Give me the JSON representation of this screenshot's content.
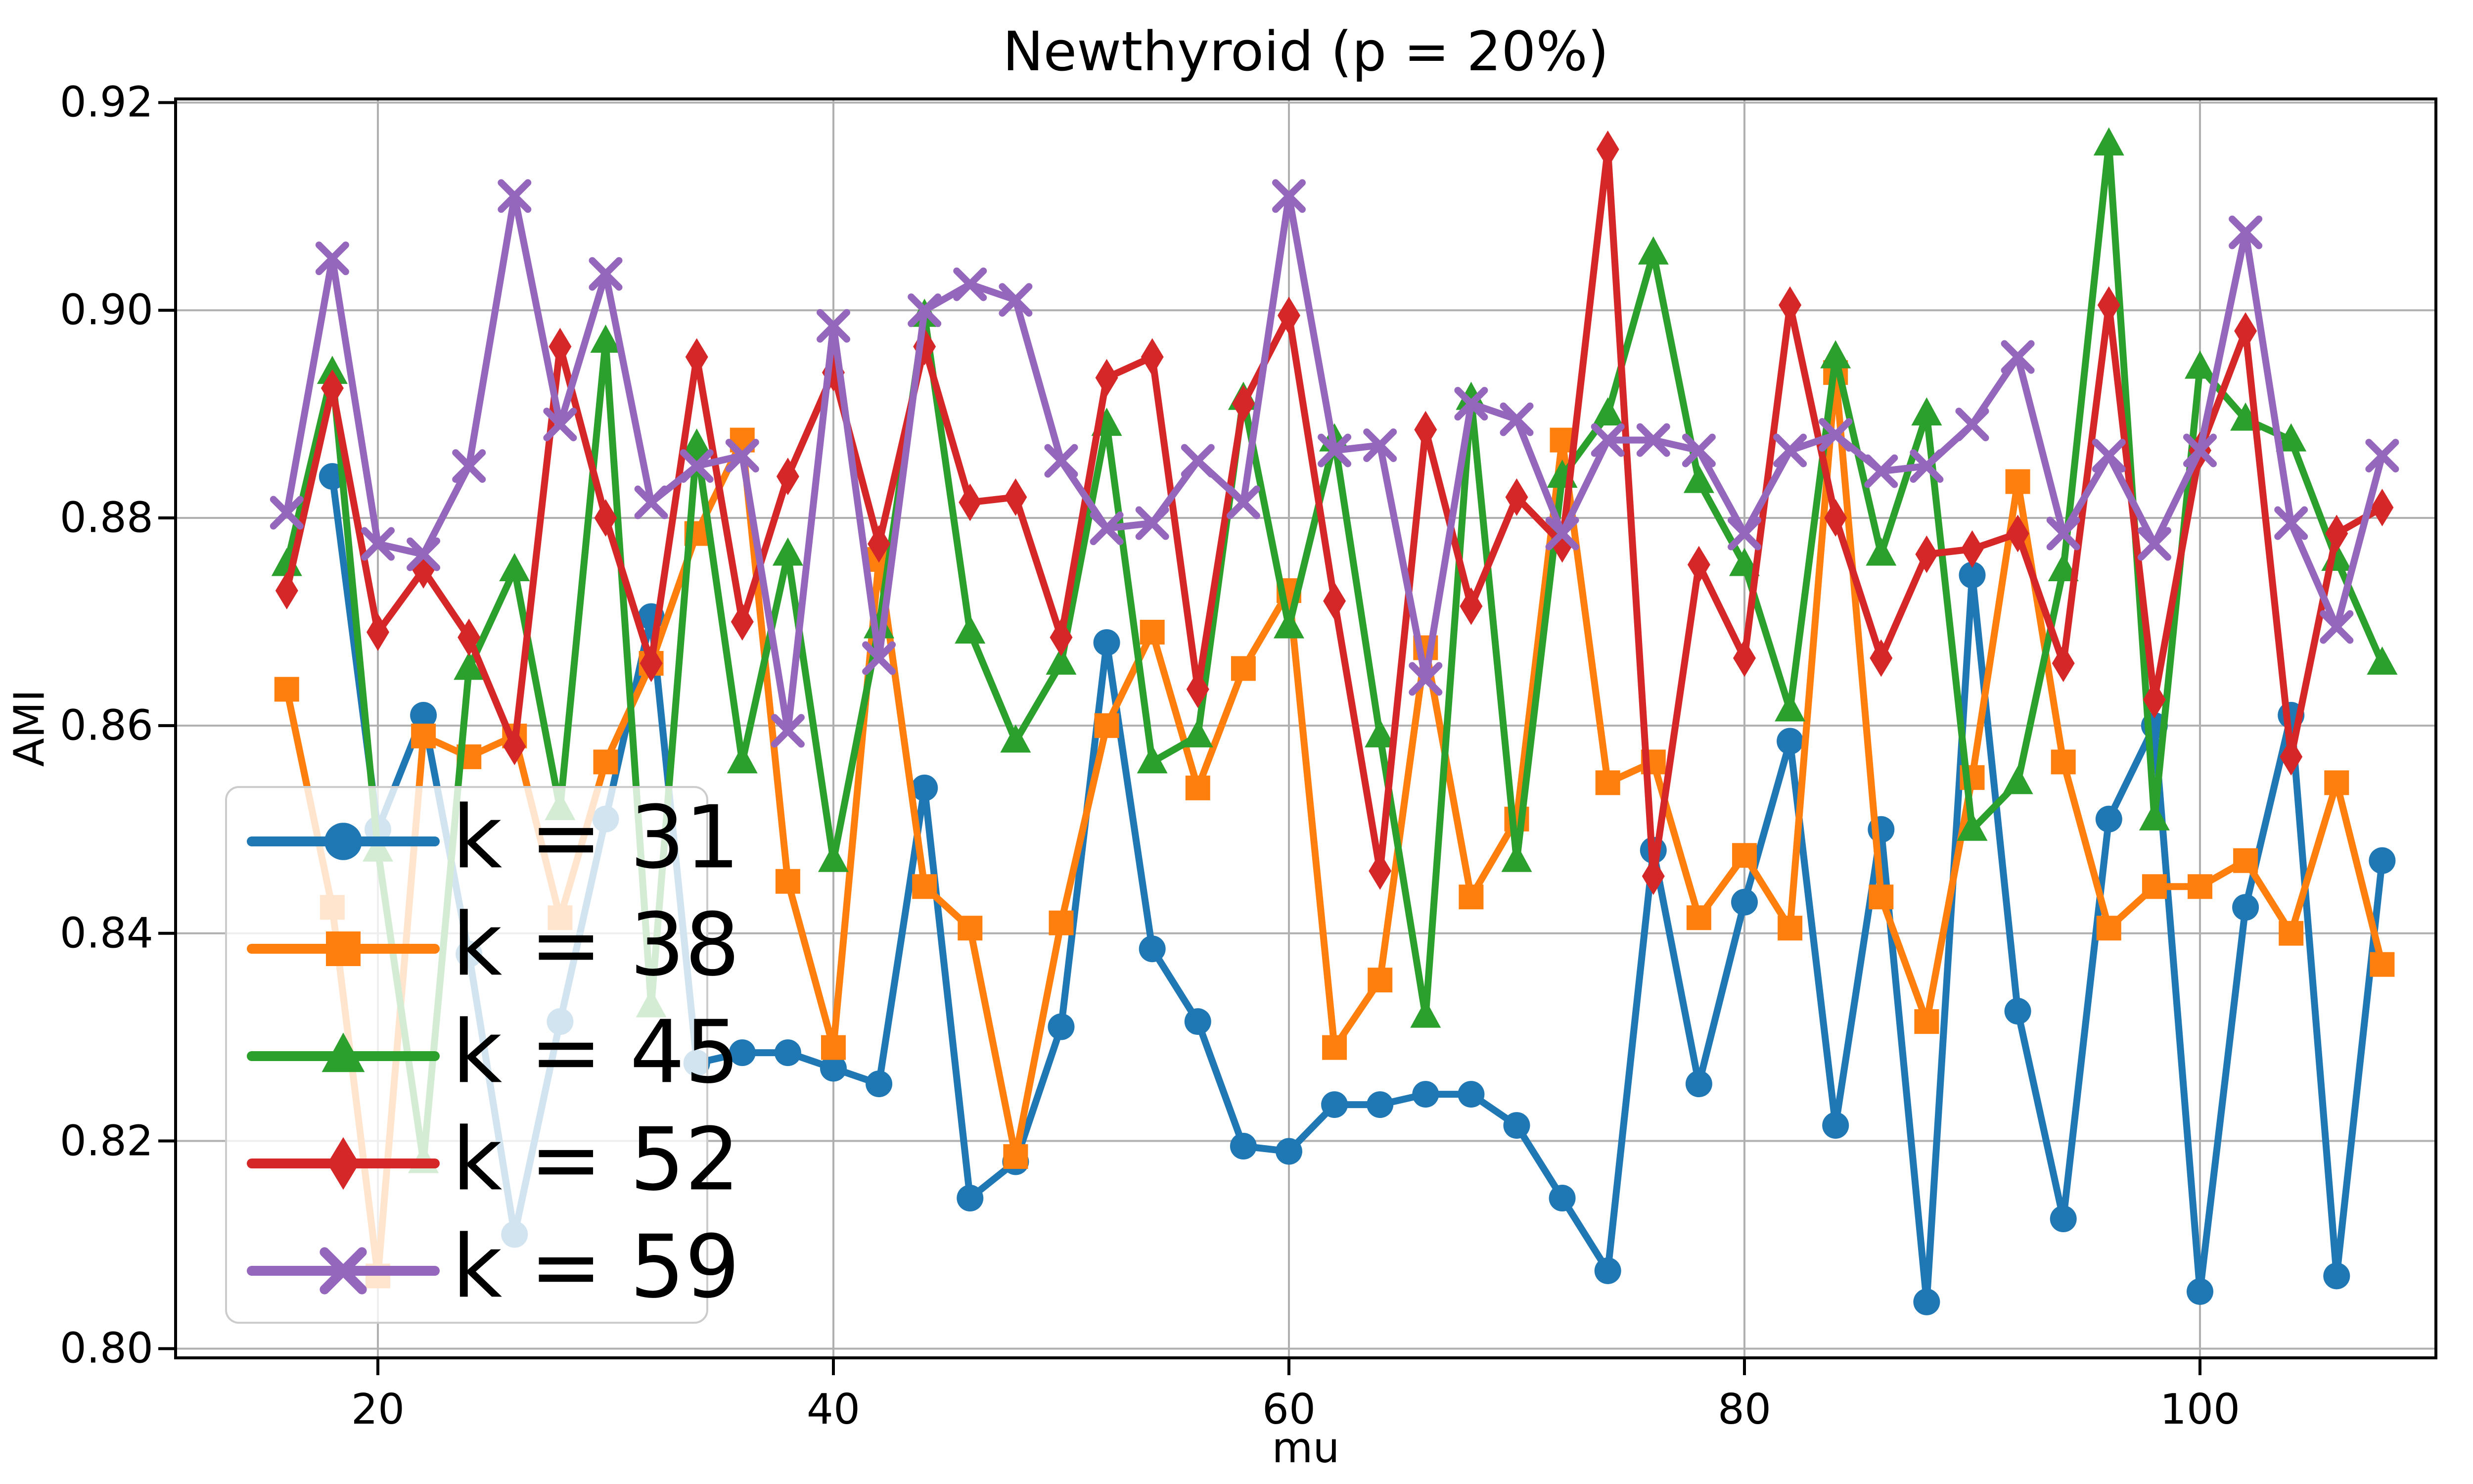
{
  "title": "Newthyroid (p = 20%)",
  "axes": {
    "xlabel": "mu",
    "ylabel": "AMI",
    "x_ticks": [
      20,
      40,
      60,
      80,
      100
    ],
    "y_ticks": [
      "0.80",
      "0.82",
      "0.84",
      "0.86",
      "0.88",
      "0.90",
      "0.92"
    ],
    "grid": true,
    "grid_color": "#b0b0b0",
    "spine_color": "#000000"
  },
  "legend": {
    "position": "lower left",
    "background": "rgba(255,255,255,0.8)",
    "border_color": "#cccccc"
  },
  "chart_data": {
    "type": "line",
    "title": "Newthyroid (p = 20%)",
    "xlabel": "mu",
    "ylabel": "AMI",
    "xlim": [
      11.1,
      110.4
    ],
    "ylim": [
      0.7991,
      0.9203
    ],
    "x_tick_values": [
      20,
      40,
      60,
      80,
      100
    ],
    "y_tick_values": [
      0.8,
      0.82,
      0.84,
      0.86,
      0.88,
      0.9,
      0.92
    ],
    "series": [
      {
        "label": "k = 31",
        "color": "#1f77b4",
        "marker": "circle",
        "x_start": 18,
        "x_step": 2,
        "values": [
          0.884,
          0.85,
          0.861,
          0.838,
          0.811,
          0.8315,
          0.851,
          0.8705,
          0.8275,
          0.8285,
          0.8285,
          0.827,
          0.8255,
          0.854,
          0.8145,
          0.818,
          0.831,
          0.868,
          0.8385,
          0.8315,
          0.8195,
          0.819,
          0.8235,
          0.8235,
          0.8245,
          0.8245,
          0.8215,
          0.8145,
          0.8075,
          0.848,
          0.8255,
          0.843,
          0.8585,
          0.8215,
          0.85,
          0.8045,
          0.8745,
          0.8325,
          0.8125,
          0.851,
          0.86,
          0.8055,
          0.8425,
          0.861,
          0.807,
          0.847
        ]
      },
      {
        "label": "k = 38",
        "color": "#ff7f0e",
        "marker": "square",
        "x_start": 16,
        "x_step": 2,
        "values": [
          0.8635,
          0.8425,
          0.807,
          0.859,
          0.857,
          0.859,
          0.8415,
          0.8565,
          0.866,
          0.8785,
          0.8875,
          0.845,
          0.829,
          0.876,
          0.8445,
          0.8405,
          0.8185,
          0.841,
          0.86,
          0.869,
          0.854,
          0.8655,
          0.873,
          0.829,
          0.8355,
          0.8675,
          0.8435,
          0.851,
          0.8875,
          0.8545,
          0.8565,
          0.8415,
          0.8475,
          0.8405,
          0.894,
          0.8435,
          0.8315,
          0.855,
          0.8835,
          0.8565,
          0.8405,
          0.8445,
          0.8445,
          0.847,
          0.84,
          0.8545,
          0.837
        ]
      },
      {
        "label": "k = 45",
        "color": "#2ca02c",
        "marker": "triangle",
        "x_start": 16,
        "x_step": 2,
        "values": [
          0.8755,
          0.894,
          0.848,
          0.818,
          0.8655,
          0.875,
          0.852,
          0.897,
          0.833,
          0.887,
          0.8565,
          0.8765,
          0.847,
          0.8695,
          0.8995,
          0.869,
          0.8585,
          0.866,
          0.889,
          0.8565,
          0.859,
          0.8915,
          0.8695,
          0.8875,
          0.859,
          0.832,
          0.8915,
          0.847,
          0.884,
          0.89,
          0.9055,
          0.8835,
          0.8755,
          0.8615,
          0.8955,
          0.8765,
          0.89,
          0.85,
          0.8545,
          0.875,
          0.916,
          0.851,
          0.8945,
          0.8895,
          0.8875,
          0.876,
          0.866
        ]
      },
      {
        "label": "k = 52",
        "color": "#d62728",
        "marker": "diamond",
        "x_start": 16,
        "x_step": 2,
        "values": [
          0.873,
          0.8925,
          0.869,
          0.875,
          0.8685,
          0.858,
          0.8965,
          0.88,
          0.866,
          0.8955,
          0.87,
          0.884,
          0.894,
          0.8775,
          0.8965,
          0.8815,
          0.882,
          0.8685,
          0.8935,
          0.8955,
          0.8635,
          0.891,
          0.8995,
          0.872,
          0.846,
          0.8885,
          0.8715,
          0.882,
          0.8775,
          0.9155,
          0.8455,
          0.8755,
          0.8665,
          0.9005,
          0.88,
          0.8665,
          0.8765,
          0.877,
          0.8785,
          0.866,
          0.9005,
          0.8625,
          0.8865,
          0.898,
          0.857,
          0.8785,
          0.881
        ]
      },
      {
        "label": "k = 59",
        "color": "#9467bd",
        "marker": "x",
        "x_start": 16,
        "x_step": 2,
        "values": [
          0.8805,
          0.905,
          0.8775,
          0.8765,
          0.885,
          0.911,
          0.889,
          0.9035,
          0.8815,
          0.885,
          0.886,
          0.8595,
          0.8985,
          0.8665,
          0.9,
          0.9025,
          0.901,
          0.8855,
          0.879,
          0.8795,
          0.8855,
          0.8815,
          0.911,
          0.8865,
          0.887,
          0.8645,
          0.891,
          0.8895,
          0.8785,
          0.8875,
          0.8875,
          0.8865,
          0.8785,
          0.8865,
          0.888,
          0.8845,
          0.885,
          0.889,
          0.8955,
          0.8785,
          0.886,
          0.8775,
          0.8865,
          0.9075,
          0.8795,
          0.8695,
          0.886
        ]
      }
    ]
  }
}
